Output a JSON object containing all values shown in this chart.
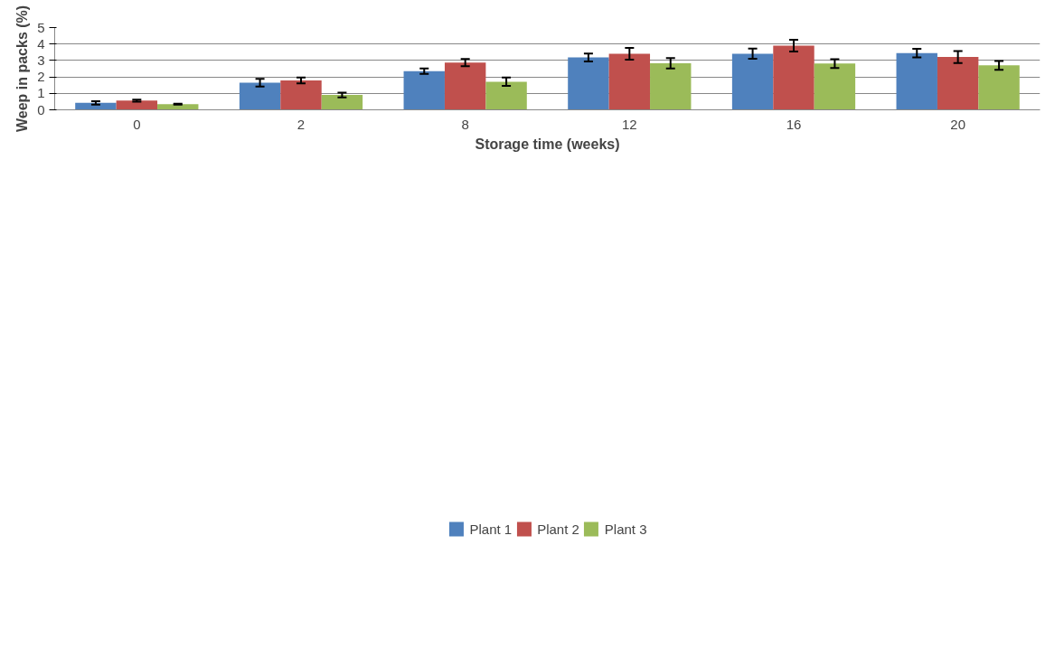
{
  "chart_data": {
    "type": "bar",
    "xlabel": "Storage time (weeks)",
    "ylabel": "Weep in packs (%)",
    "categories": [
      "0",
      "2",
      "8",
      "12",
      "16",
      "20"
    ],
    "series": [
      {
        "name": "Plant 1",
        "color": "#4f81bd",
        "values": [
          0.42,
          1.65,
          2.35,
          3.18,
          3.41,
          3.45
        ],
        "errors": [
          0.1,
          0.23,
          0.17,
          0.24,
          0.31,
          0.26
        ]
      },
      {
        "name": "Plant 2",
        "color": "#c0504d",
        "values": [
          0.56,
          1.79,
          2.87,
          3.41,
          3.9,
          3.21
        ],
        "errors": [
          0.06,
          0.18,
          0.22,
          0.36,
          0.36,
          0.36
        ]
      },
      {
        "name": "Plant 3",
        "color": "#9bbb59",
        "values": [
          0.34,
          0.9,
          1.71,
          2.83,
          2.81,
          2.7
        ],
        "errors": [
          0.03,
          0.14,
          0.25,
          0.31,
          0.27,
          0.27
        ]
      }
    ],
    "ylim": [
      0,
      5
    ],
    "yticks": [
      0,
      1,
      2,
      3,
      4,
      5
    ],
    "grid": "y",
    "legend": "bottom"
  }
}
